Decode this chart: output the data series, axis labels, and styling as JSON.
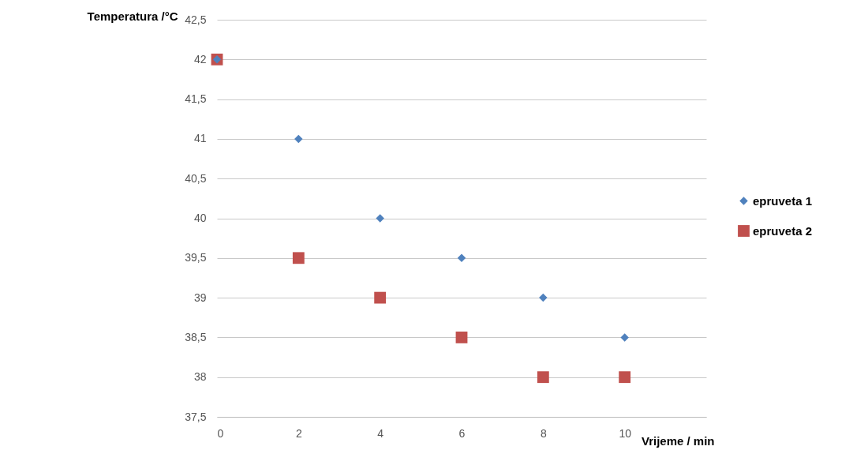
{
  "chart_data": {
    "type": "scatter",
    "xlabel": "Vrijeme / min",
    "ylabel": "Temperatura /°C",
    "x": [
      0,
      2,
      4,
      6,
      8,
      10
    ],
    "series": [
      {
        "name": "epruveta 1",
        "color": "#4f81bd",
        "marker": "diamond",
        "values": [
          42,
          41,
          40,
          39.5,
          39,
          38.5
        ]
      },
      {
        "name": "epruveta 2",
        "color": "#c0504d",
        "marker": "square",
        "values": [
          42,
          39.5,
          39,
          38.5,
          38,
          38
        ]
      }
    ],
    "xlim": [
      0,
      12
    ],
    "xticks": [
      0,
      2,
      4,
      6,
      8,
      10
    ],
    "ylim": [
      37.5,
      42.5
    ],
    "yticks": [
      {
        "value": 37.5,
        "label": "37,5"
      },
      38,
      {
        "value": 38.5,
        "label": "38,5"
      },
      39,
      {
        "value": 39.5,
        "label": "39,5"
      },
      40,
      {
        "value": 40.5,
        "label": "40,5"
      },
      41,
      {
        "value": 41.5,
        "label": "41,5"
      },
      42,
      {
        "value": 42.5,
        "label": "42,5"
      }
    ],
    "grid": "y",
    "legend": "right"
  }
}
